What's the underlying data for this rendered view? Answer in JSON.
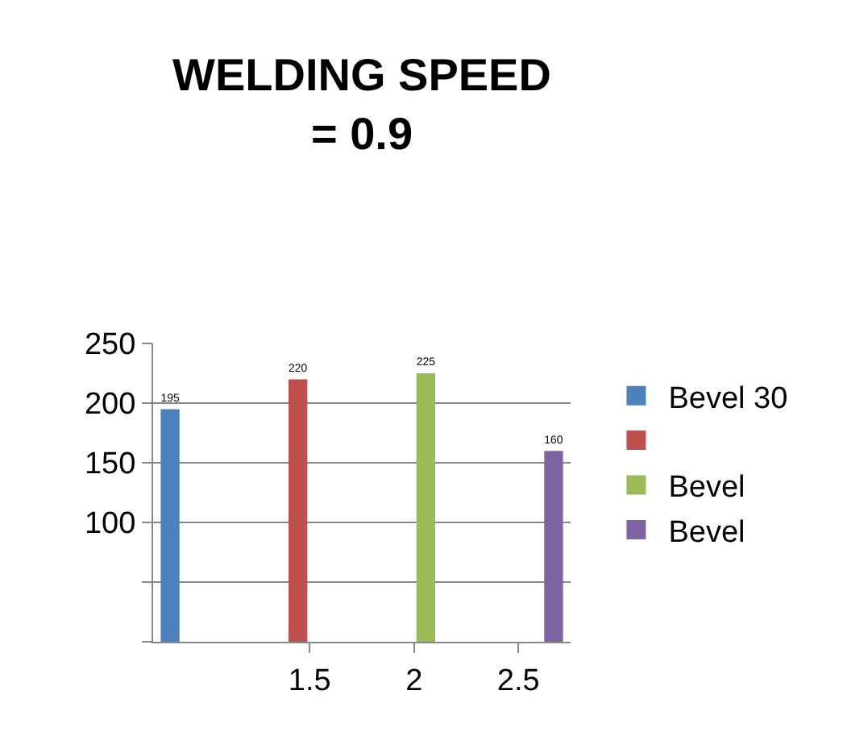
{
  "chart_data": {
    "type": "bar",
    "title": "WELDING SPEED\n= 0.9",
    "categories": [
      null,
      "1.5",
      "2",
      "2.5"
    ],
    "series": [
      {
        "name": "Bevel 30",
        "color": "#4f81bd",
        "values": [
          195,
          null,
          null,
          null
        ]
      },
      {
        "color": "#c0504d",
        "values": [
          null,
          220,
          null,
          null
        ]
      },
      {
        "name": "Bevel",
        "color": "#9bbb59",
        "values": [
          null,
          null,
          225,
          null
        ]
      },
      {
        "name": "Bevel",
        "color": "#8064a2",
        "values": [
          null,
          null,
          null,
          160
        ]
      }
    ],
    "ylim": [
      0,
      250
    ],
    "yticks": [
      {
        "value": 0,
        "label": null
      },
      {
        "value": 50,
        "label": null
      },
      100,
      150,
      200,
      250
    ],
    "grid": "y",
    "legend": "right",
    "data_labels": true
  }
}
